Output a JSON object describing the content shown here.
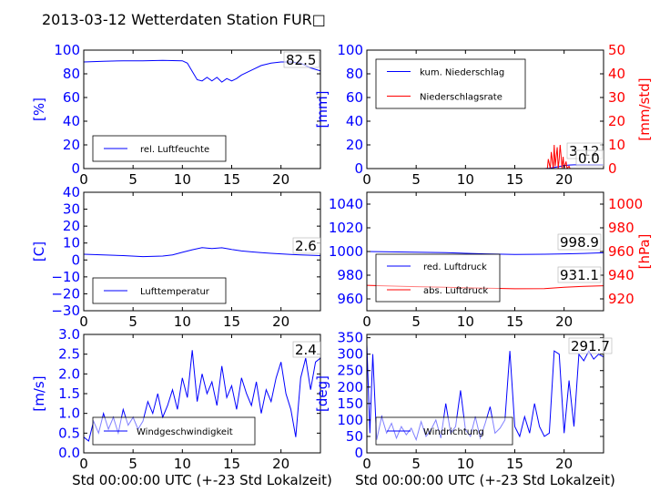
{
  "title": "2013-03-12 Wetterdaten Station FUR□",
  "colors": {
    "left_axis": "#0000ff",
    "right_axis": "#ff0000",
    "text": "#000000"
  },
  "chart_data": [
    {
      "id": "humidity",
      "type": "line",
      "xlim": [
        0,
        24
      ],
      "xticks": [
        "0",
        "5",
        "10",
        "15",
        "20"
      ],
      "ylim": [
        0,
        100
      ],
      "yticks": [
        "0",
        "20",
        "40",
        "60",
        "80",
        "100"
      ],
      "ylabel": "[%]",
      "legend": [
        {
          "name": "rel. Luftfeuchte",
          "color": "#0000ff"
        }
      ],
      "last_value": "82.5",
      "series": [
        {
          "name": "rel. Luftfeuchte",
          "axis": "left",
          "color": "#0000ff",
          "x": [
            0,
            2,
            4,
            6,
            8,
            10,
            10.5,
            11,
            11.5,
            12,
            12.5,
            13,
            13.5,
            14,
            14.5,
            15,
            15.5,
            16,
            17,
            18,
            19,
            20,
            21,
            22,
            23,
            24
          ],
          "y": [
            90,
            90.5,
            91,
            91,
            91.3,
            91,
            89,
            82,
            75,
            74,
            77,
            74,
            77,
            73,
            76,
            74,
            76,
            79,
            83,
            87,
            89,
            90,
            90,
            89,
            85,
            82.5
          ]
        }
      ]
    },
    {
      "id": "precipitation",
      "type": "line",
      "xlim": [
        0,
        24
      ],
      "xticks": [
        "0",
        "5",
        "10",
        "15",
        "20"
      ],
      "ylim": [
        0,
        100
      ],
      "yticks": [
        "0",
        "20",
        "40",
        "60",
        "80",
        "100"
      ],
      "ylabel": "[mm]",
      "ylim_right": [
        0,
        50
      ],
      "yticks_right": [
        "0",
        "10",
        "20",
        "30",
        "40",
        "50"
      ],
      "ylabel_right": "[mm/std]",
      "legend": [
        {
          "name": "kum. Niederschlag",
          "color": "#0000ff"
        },
        {
          "name": "Niederschlagsrate",
          "color": "#ff0000"
        }
      ],
      "last_values": [
        "3.12",
        "0.0"
      ],
      "series": [
        {
          "name": "kum. Niederschlag",
          "axis": "left",
          "color": "#0000ff",
          "x": [
            0,
            18,
            18.5,
            19,
            19.5,
            20,
            20.5,
            21,
            22,
            24
          ],
          "y": [
            0,
            0,
            0.3,
            1,
            1.8,
            2.5,
            3.0,
            3.12,
            3.12,
            3.12
          ]
        },
        {
          "name": "Niederschlagsrate",
          "axis": "right",
          "color": "#ff0000",
          "x": [
            0,
            18,
            18.3,
            18.4,
            18.6,
            18.7,
            18.9,
            19.0,
            19.1,
            19.3,
            19.4,
            19.5,
            19.6,
            19.8,
            19.9,
            20.0,
            20.2,
            20.3,
            20.5,
            20.6,
            24
          ],
          "y": [
            0,
            0,
            0,
            4,
            0,
            7,
            0,
            10,
            1,
            9,
            0,
            4,
            10,
            0,
            5,
            0,
            3,
            0,
            1,
            0,
            0
          ]
        }
      ]
    },
    {
      "id": "temperature",
      "type": "line",
      "xlim": [
        0,
        24
      ],
      "xticks": [
        "0",
        "5",
        "10",
        "15",
        "20"
      ],
      "ylim": [
        -30,
        40
      ],
      "yticks": [
        "−30",
        "−20",
        "−10",
        "0",
        "10",
        "20",
        "30",
        "40"
      ],
      "ylabel": "[C]",
      "legend": [
        {
          "name": "Lufttemperatur",
          "color": "#0000ff"
        }
      ],
      "last_value": "2.6",
      "series": [
        {
          "name": "Lufttemperatur",
          "axis": "left",
          "color": "#0000ff",
          "x": [
            0,
            2,
            4,
            6,
            8,
            9,
            10,
            11,
            12,
            13,
            14,
            15,
            16,
            17,
            18,
            19,
            20,
            21,
            22,
            23,
            24
          ],
          "y": [
            3.4,
            3.0,
            2.6,
            2.0,
            2.3,
            3.0,
            4.5,
            6.0,
            7.3,
            6.8,
            7.2,
            6.2,
            5.3,
            4.8,
            4.3,
            3.9,
            3.6,
            3.3,
            3.0,
            2.8,
            2.6
          ]
        }
      ]
    },
    {
      "id": "pressure",
      "type": "line",
      "xlim": [
        0,
        24
      ],
      "xticks": [
        "0",
        "5",
        "10",
        "15",
        "20"
      ],
      "ylim": [
        950,
        1050
      ],
      "yticks": [
        "960",
        "980",
        "1000",
        "1020",
        "1040"
      ],
      "ylim_right": [
        910,
        1010
      ],
      "yticks_right": [
        "920",
        "940",
        "960",
        "980",
        "1000"
      ],
      "ylabel_right": "[hPa]",
      "legend": [
        {
          "name": "red. Luftdruck",
          "color": "#0000ff"
        },
        {
          "name": "abs. Luftdruck",
          "color": "#ff0000"
        }
      ],
      "last_values": [
        "998.9",
        "931.1"
      ],
      "series": [
        {
          "name": "red. Luftdruck",
          "axis": "left",
          "color": "#0000ff",
          "x": [
            0,
            4,
            8,
            12,
            15,
            18,
            20,
            22,
            24
          ],
          "y": [
            1000,
            999.5,
            999,
            998,
            997.5,
            997.7,
            998,
            998.4,
            998.9
          ]
        },
        {
          "name": "abs. Luftdruck",
          "axis": "right",
          "color": "#ff0000",
          "x": [
            0,
            4,
            8,
            12,
            15,
            18,
            20,
            22,
            24
          ],
          "y": [
            931.5,
            930.5,
            929.8,
            929,
            928.5,
            928.6,
            929.8,
            930.6,
            931.1
          ]
        }
      ]
    },
    {
      "id": "windspeed",
      "type": "line",
      "xlim": [
        0,
        24
      ],
      "xticks": [
        "0",
        "5",
        "10",
        "15",
        "20"
      ],
      "ylim": [
        0,
        3.0
      ],
      "yticks": [
        "0.0",
        "0.5",
        "1.0",
        "1.5",
        "2.0",
        "2.5",
        "3.0"
      ],
      "ylabel": "[m/s]",
      "xlabel": "Std 00:00:00 UTC (+-23 Std Lokalzeit)",
      "legend": [
        {
          "name": "Windgeschwindigkeit",
          "color": "#0000ff"
        }
      ],
      "last_value": "2.4",
      "series": [
        {
          "name": "Windgeschwindigkeit",
          "axis": "left",
          "color": "#0000ff",
          "x": [
            0,
            0.5,
            1,
            1.5,
            2,
            2.5,
            3,
            3.5,
            4,
            4.5,
            5,
            5.5,
            6,
            6.5,
            7,
            7.5,
            8,
            8.5,
            9,
            9.5,
            10,
            10.5,
            11,
            11.5,
            12,
            12.5,
            13,
            13.5,
            14,
            14.5,
            15,
            15.5,
            16,
            16.5,
            17,
            17.5,
            18,
            18.5,
            19,
            19.5,
            20,
            20.5,
            21,
            21.5,
            22,
            22.5,
            23,
            23.5,
            24
          ],
          "y": [
            0.4,
            0.3,
            0.8,
            0.5,
            1.0,
            0.6,
            0.9,
            0.5,
            1.1,
            0.7,
            0.9,
            0.6,
            0.8,
            1.3,
            1.0,
            1.5,
            0.9,
            1.2,
            1.6,
            1.1,
            1.9,
            1.4,
            2.6,
            1.3,
            2.0,
            1.5,
            1.8,
            1.2,
            2.2,
            1.4,
            1.7,
            1.1,
            1.9,
            1.5,
            1.2,
            1.8,
            1.0,
            1.6,
            1.3,
            1.9,
            2.3,
            1.5,
            1.1,
            0.4,
            1.9,
            2.4,
            1.6,
            2.3,
            2.4
          ]
        }
      ]
    },
    {
      "id": "winddirection",
      "type": "line",
      "xlim": [
        0,
        24
      ],
      "xticks": [
        "0",
        "5",
        "10",
        "15",
        "20"
      ],
      "ylim": [
        0,
        360
      ],
      "yticks": [
        "0",
        "50",
        "100",
        "150",
        "200",
        "250",
        "300",
        "350"
      ],
      "ylabel": "[deg]",
      "xlabel": "Std 00:00:00 UTC (+-23 Std Lokalzeit)",
      "legend": [
        {
          "name": "Windrichtung",
          "color": "#0000ff"
        }
      ],
      "last_value": "291.7",
      "series": [
        {
          "name": "Windrichtung",
          "axis": "left",
          "color": "#0000ff",
          "x": [
            0,
            0.3,
            0.6,
            1,
            1.5,
            2,
            2.5,
            3,
            3.5,
            4,
            4.5,
            5,
            5.5,
            6,
            6.5,
            7,
            7.5,
            8,
            8.5,
            9,
            9.5,
            10,
            10.5,
            11,
            11.5,
            12,
            12.5,
            13,
            13.5,
            14,
            14.5,
            15,
            15.5,
            16,
            16.5,
            17,
            17.5,
            18,
            18.5,
            19,
            19.5,
            20,
            20.5,
            21,
            21.5,
            22,
            22.5,
            23,
            23.5,
            24
          ],
          "y": [
            330,
            60,
            300,
            40,
            110,
            60,
            90,
            45,
            80,
            55,
            75,
            40,
            95,
            50,
            70,
            100,
            45,
            150,
            60,
            80,
            190,
            70,
            50,
            110,
            45,
            90,
            140,
            60,
            75,
            100,
            310,
            80,
            50,
            110,
            60,
            150,
            80,
            50,
            60,
            310,
            300,
            60,
            220,
            80,
            300,
            280,
            310,
            285,
            300,
            291.7
          ]
        }
      ]
    }
  ]
}
